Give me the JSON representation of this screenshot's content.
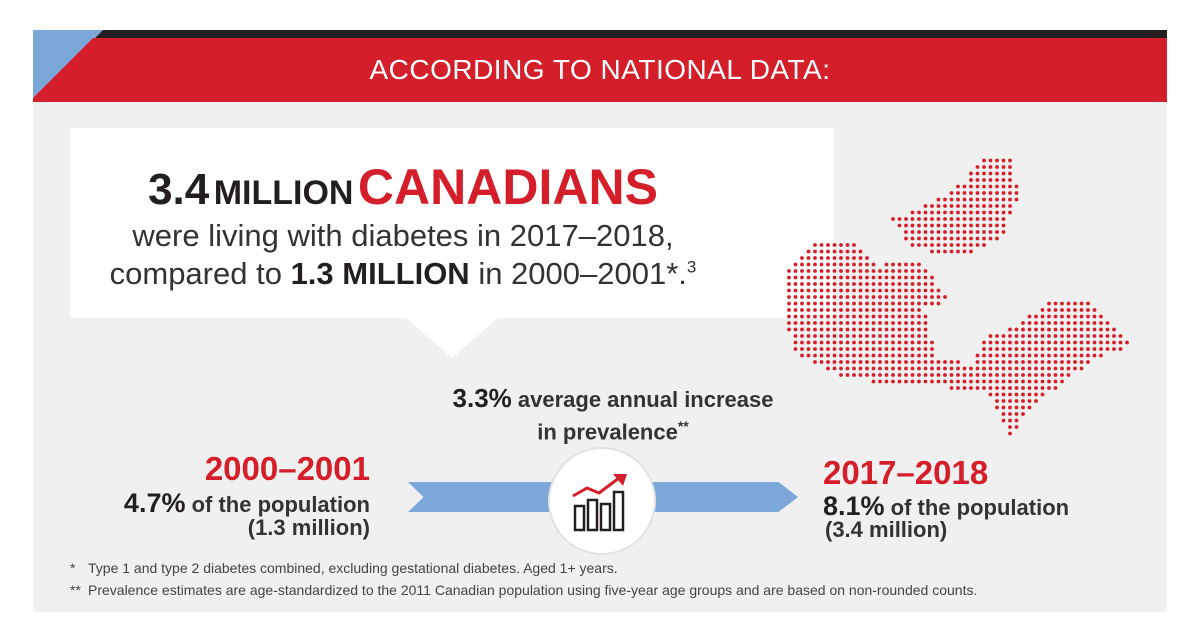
{
  "banner": {
    "title": "ACCORDING TO NATIONAL DATA:"
  },
  "headline": {
    "number": "3.4",
    "million": "MILLION",
    "canadians": "CANADIANS",
    "line2": "were living with diabetes in 2017–2018,",
    "line3_pre": "compared to ",
    "line3_bold": "1.3 MILLION",
    "line3_post": " in 2000–2001*.",
    "line3_ref": "3"
  },
  "increase": {
    "pct": "3.3%",
    "text1": " average annual increase",
    "text2": "in prevalence",
    "mark": "**"
  },
  "left": {
    "year": "2000–2001",
    "pct": "4.7%",
    "pop_text": " of the population",
    "count": "(1.3 million)"
  },
  "right": {
    "year": "2017–2018",
    "pct": "8.1%",
    "pop_text": " of the population",
    "count": "(3.4 million)"
  },
  "footnotes": [
    {
      "mark": "*",
      "text": "Type 1 and type 2 diabetes combined, excluding gestational diabetes. Aged 1+ years."
    },
    {
      "mark": "**",
      "text": "Prevalence estimates are age-standardized to the 2011 Canadian population using five-year age groups and are based on non-rounded counts."
    }
  ],
  "icons": {
    "map": "canada-map-icon",
    "trend": "rising-chart-icon"
  },
  "colors": {
    "red": "#d41f2a",
    "blue": "#7ba7d9",
    "dark": "#231f20",
    "bg": "#f0f0f0"
  }
}
